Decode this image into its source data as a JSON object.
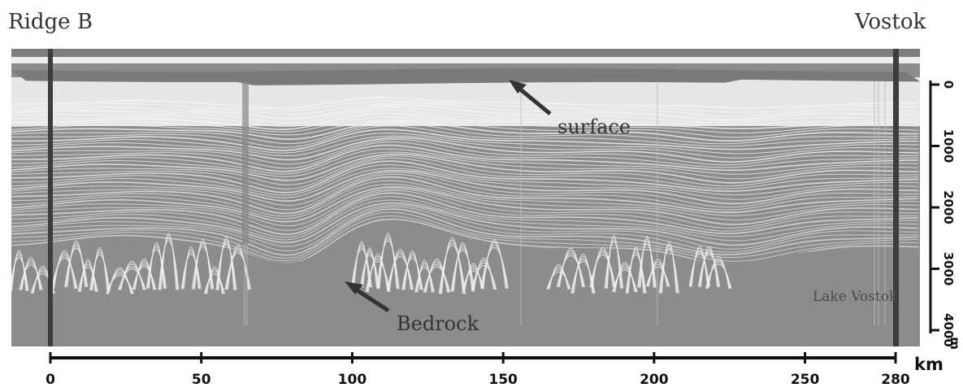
{
  "titles": {
    "left": "Ridge B",
    "right": "Vostok"
  },
  "annotations": {
    "surface": "surface",
    "bedrock": "Bedrock",
    "lake": "Lake Vostok"
  },
  "x_axis": {
    "unit": "km",
    "ticks": [
      "0",
      "50",
      "100",
      "150",
      "200",
      "250",
      "280"
    ],
    "tick_values": [
      0,
      50,
      100,
      150,
      200,
      250,
      280
    ],
    "range": [
      0,
      280
    ]
  },
  "depth_axis": {
    "unit": "m",
    "ticks": [
      "0",
      "1000",
      "2000",
      "3000",
      "4000"
    ],
    "tick_values": [
      0,
      1000,
      2000,
      3000,
      4000
    ],
    "range": [
      0,
      4000
    ]
  },
  "colors": {
    "radar_background": "#8c8c8c",
    "layer_line": "#f2f2f2",
    "surface_band": "#7a7a7a",
    "axis": "#111111"
  }
}
